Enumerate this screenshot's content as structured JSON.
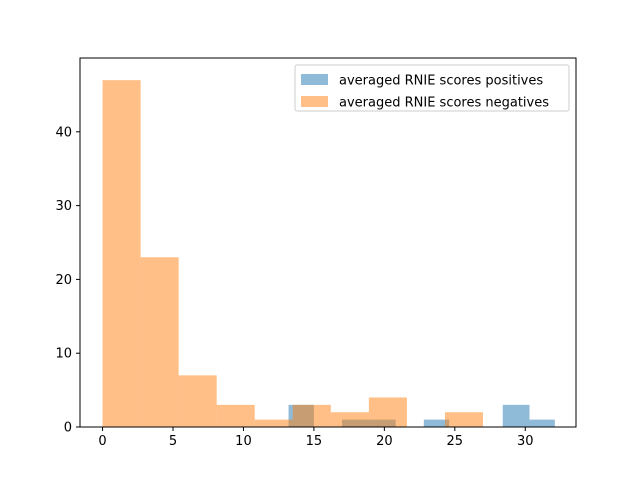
{
  "chart_data": {
    "type": "bar",
    "title": "",
    "xlabel": "",
    "ylabel": "",
    "xlim": [
      -1.6,
      33.6
    ],
    "ylim": [
      0,
      50
    ],
    "xticks": [
      0,
      5,
      10,
      15,
      20,
      25,
      30
    ],
    "yticks": [
      0,
      10,
      20,
      30,
      40
    ],
    "grid": false,
    "legend_position": "top-right",
    "series": [
      {
        "name": "averaged RNIE scores positives",
        "color": "#1f77b4",
        "opacity": 0.5,
        "bins": [
          {
            "x0": 13.2,
            "x1": 15.0,
            "count": 3
          },
          {
            "x0": 17.0,
            "x1": 20.8,
            "count": 1
          },
          {
            "x0": 22.8,
            "x1": 24.6,
            "count": 1
          },
          {
            "x0": 28.4,
            "x1": 30.3,
            "count": 3
          },
          {
            "x0": 30.3,
            "x1": 32.1,
            "count": 1
          }
        ]
      },
      {
        "name": "averaged RNIE scores negatives",
        "color": "#ff7f0e",
        "opacity": 0.5,
        "bins": [
          {
            "x0": 0.0,
            "x1": 2.7,
            "count": 47
          },
          {
            "x0": 2.7,
            "x1": 5.4,
            "count": 23
          },
          {
            "x0": 5.4,
            "x1": 8.1,
            "count": 7
          },
          {
            "x0": 8.1,
            "x1": 10.8,
            "count": 3
          },
          {
            "x0": 10.8,
            "x1": 13.5,
            "count": 1
          },
          {
            "x0": 13.5,
            "x1": 16.2,
            "count": 3
          },
          {
            "x0": 16.2,
            "x1": 18.9,
            "count": 2
          },
          {
            "x0": 18.9,
            "x1": 21.6,
            "count": 4
          },
          {
            "x0": 21.6,
            "x1": 24.3,
            "count": 0
          },
          {
            "x0": 24.3,
            "x1": 27.0,
            "count": 2
          }
        ]
      }
    ]
  }
}
